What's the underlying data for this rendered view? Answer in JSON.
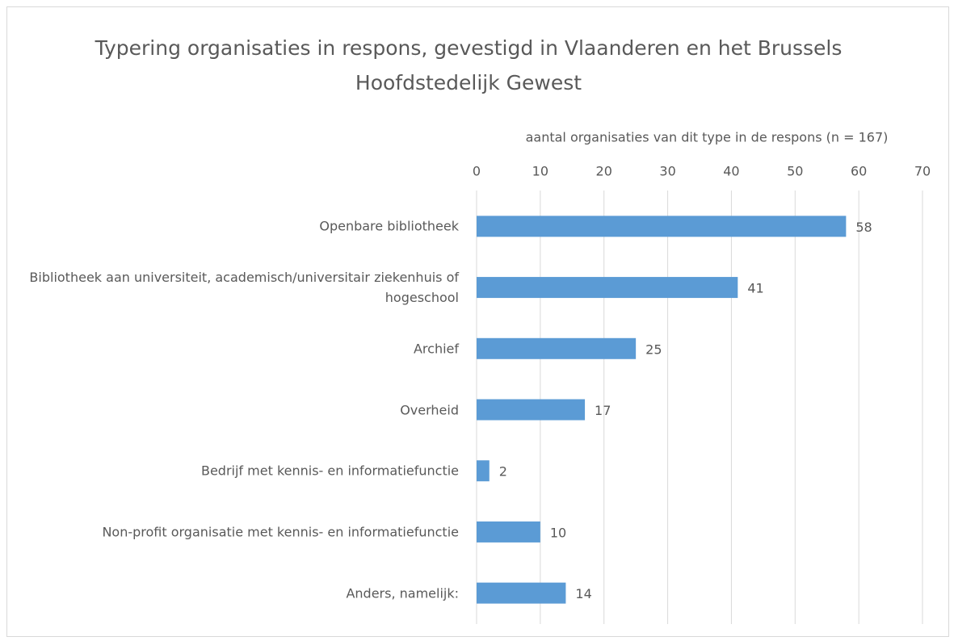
{
  "chart_data": {
    "type": "barh",
    "title": "Typering organisaties in respons, gevestigd in Vlaanderen en het Brussels Hoofdstedelijk Gewest",
    "xlabel": "aantal organisaties van dit type in de respons (n = 167)",
    "categories": [
      "Openbare bibliotheek",
      "Bibliotheek aan universiteit, academisch/universitair ziekenhuis of hogeschool",
      "Archief",
      "Overheid",
      "Bedrijf met kennis- en informatiefunctie",
      "Non-profit organisatie met kennis- en informatiefunctie",
      "Anders, namelijk:"
    ],
    "values": [
      58,
      41,
      25,
      17,
      2,
      10,
      14
    ],
    "color": "#5b9bd5",
    "xlim": [
      0,
      70
    ],
    "xticks": [
      0,
      10,
      20,
      30,
      40,
      50,
      60,
      70
    ],
    "grid": true
  }
}
